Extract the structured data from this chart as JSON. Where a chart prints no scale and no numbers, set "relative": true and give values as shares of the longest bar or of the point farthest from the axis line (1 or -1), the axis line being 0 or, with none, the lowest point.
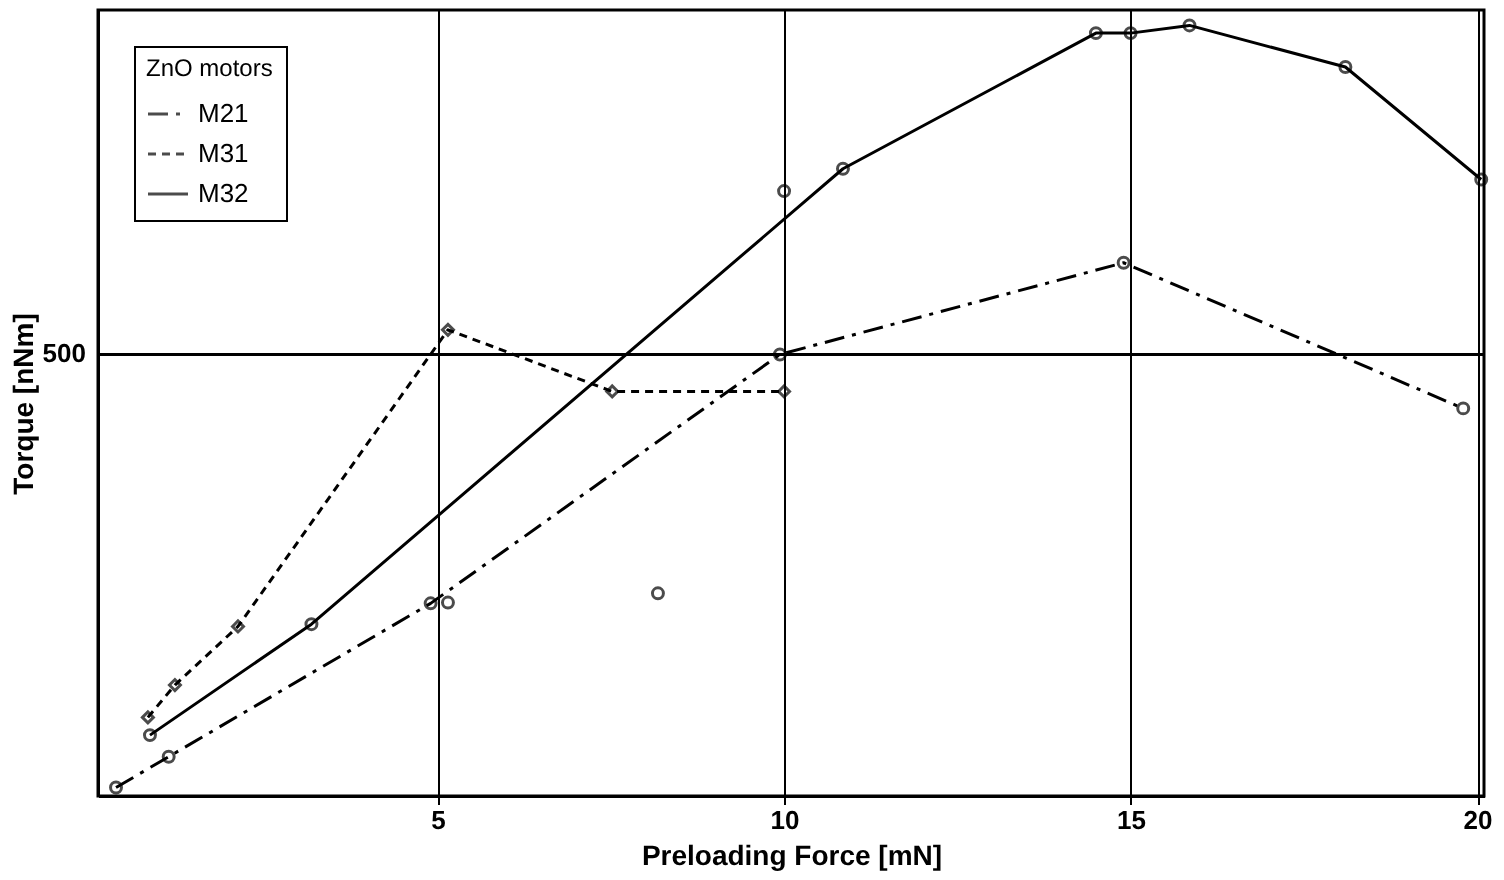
{
  "chart_data": {
    "type": "line",
    "relative": true,
    "xlabel": "Preloading Force  [mN]",
    "ylabel": "Torque  [nNm]",
    "legend_title": "ZnO motors",
    "legend": "top left",
    "grid": "x",
    "xlim": [
      0.1,
      20.1
    ],
    "xticks": [
      5,
      10,
      15,
      20
    ],
    "ref_lines": [
      {
        "axis": "y",
        "value": 0.573,
        "color": "#000000"
      }
    ],
    "annotations": [
      "500"
    ],
    "series": [
      {
        "name": "M21",
        "color": "#000000",
        "line_style": "dashed",
        "marker": "circle",
        "x": [
          0.36,
          1.12,
          4.9,
          9.94,
          14.9,
          19.8
        ],
        "values": [
          0.011,
          0.051,
          0.25,
          0.573,
          0.692,
          0.503
        ]
      },
      {
        "name": "M31",
        "color": "#000000",
        "line_style": "dotted",
        "marker": "diamond",
        "x": [
          0.82,
          1.21,
          2.12,
          5.15,
          7.52,
          10.0
        ],
        "values": [
          0.102,
          0.144,
          0.22,
          0.605,
          0.525,
          0.525
        ]
      },
      {
        "name": "M32",
        "color": "#000000",
        "line_style": "solid",
        "marker": "circle",
        "x": [
          0.85,
          3.18,
          10.85,
          14.5,
          15.0,
          15.85,
          18.1,
          20.06
        ],
        "values": [
          0.079,
          0.223,
          0.814,
          0.99,
          0.99,
          1.0,
          0.946,
          0.8
        ]
      },
      {
        "type": "scatter",
        "color": "#000000",
        "marker": "circle",
        "x": [
          5.15,
          8.18,
          10.0
        ],
        "values": [
          0.251,
          0.263,
          0.785
        ]
      }
    ]
  }
}
